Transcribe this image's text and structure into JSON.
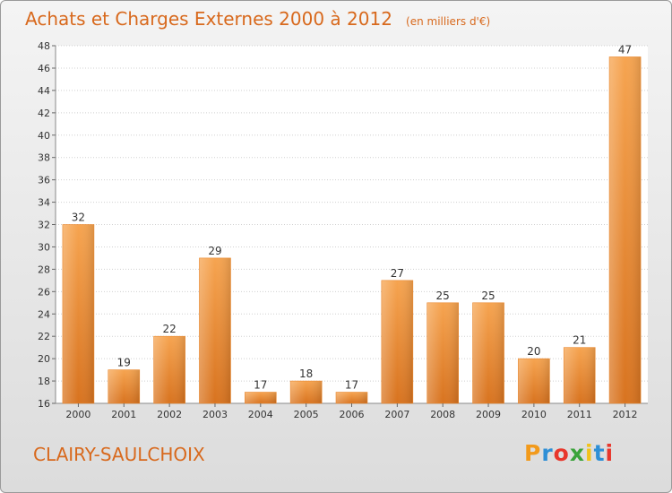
{
  "title": "Achats et Charges Externes 2000 à 2012",
  "subtitle": "(en milliers d'€)",
  "location": "CLAIRY-SAULCHOIX",
  "logo": {
    "letters": [
      "P",
      "r",
      "o",
      "x",
      "i",
      "t",
      "i"
    ],
    "colors": [
      "#f29a1b",
      "#2e8fd6",
      "#e8372c",
      "#3aa33a",
      "#f2c21b",
      "#2e8fd6",
      "#e8372c"
    ]
  },
  "colors": {
    "bar": "#f0943f",
    "title": "#d8691d"
  },
  "chart_data": {
    "type": "bar",
    "title": "Achats et Charges Externes 2000 à 2012",
    "subtitle": "(en milliers d'€)",
    "xlabel": "",
    "ylabel": "",
    "categories": [
      "2000",
      "2001",
      "2002",
      "2003",
      "2004",
      "2005",
      "2006",
      "2007",
      "2008",
      "2009",
      "2010",
      "2011",
      "2012"
    ],
    "values": [
      32,
      19,
      22,
      29,
      17,
      18,
      17,
      27,
      25,
      25,
      20,
      21,
      47
    ],
    "ylim": [
      16,
      48
    ],
    "yticks": [
      16,
      18,
      20,
      22,
      24,
      26,
      28,
      30,
      32,
      34,
      36,
      38,
      40,
      42,
      44,
      46,
      48
    ],
    "grid": true,
    "data_labels": true
  }
}
